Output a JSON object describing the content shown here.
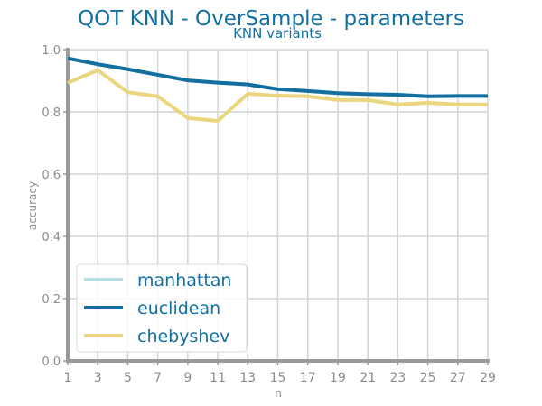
{
  "chart_data": {
    "type": "line",
    "title": "QOT KNN - OverSample - parameters",
    "subtitle": "KNN variants",
    "xlabel": "n",
    "ylabel": "accuracy",
    "x": [
      1,
      3,
      5,
      7,
      9,
      11,
      13,
      15,
      17,
      19,
      21,
      23,
      25,
      27,
      29
    ],
    "x_ticks": [
      "1",
      "3",
      "5",
      "7",
      "9",
      "11",
      "13",
      "15",
      "17",
      "19",
      "21",
      "23",
      "25",
      "27",
      "29"
    ],
    "y_ticks": [
      "0.0",
      "0.2",
      "0.4",
      "0.6",
      "0.8",
      "1.0"
    ],
    "xlim": [
      1,
      29
    ],
    "ylim": [
      0,
      1
    ],
    "grid": true,
    "legend_position": "bottom-left",
    "series": [
      {
        "name": "manhattan",
        "color": "#b7dde6",
        "values": [
          0.972,
          0.953,
          0.937,
          0.919,
          0.901,
          0.894,
          0.888,
          0.873,
          0.867,
          0.86,
          0.857,
          0.855,
          0.85,
          0.851,
          0.851
        ]
      },
      {
        "name": "euclidean",
        "color": "#126fa0",
        "values": [
          0.972,
          0.953,
          0.937,
          0.919,
          0.901,
          0.894,
          0.888,
          0.873,
          0.867,
          0.86,
          0.857,
          0.855,
          0.85,
          0.851,
          0.851
        ]
      },
      {
        "name": "chebyshev",
        "color": "#ead67f",
        "values": [
          0.893,
          0.934,
          0.863,
          0.85,
          0.78,
          0.771,
          0.858,
          0.852,
          0.85,
          0.838,
          0.838,
          0.824,
          0.829,
          0.824,
          0.824
        ]
      }
    ]
  }
}
